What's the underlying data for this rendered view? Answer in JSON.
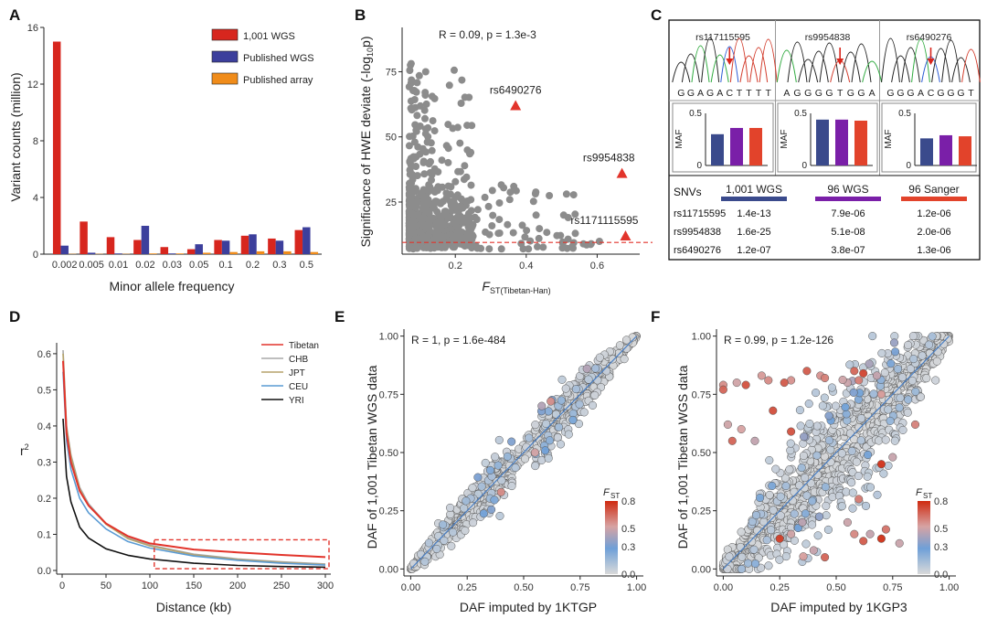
{
  "panels": {
    "A": {
      "letter": "A",
      "chart_data": {
        "type": "bar",
        "title": "",
        "xlabel": "Minor allele frequency",
        "ylabel": "Variant  counts (million)",
        "ylim": [
          0,
          16
        ],
        "yticks": [
          "0",
          "4",
          "8",
          "12",
          "16"
        ],
        "categories": [
          "0.002",
          "0.005",
          "0.01",
          "0.02",
          "0.03",
          "0.05",
          "0.1",
          "0.2",
          "0.3",
          "0.5"
        ],
        "series": [
          {
            "name": "1,001 WGS",
            "color": "#d7261e",
            "values": [
              15.0,
              2.3,
              1.2,
              1.0,
              0.5,
              0.35,
              1.0,
              1.3,
              1.1,
              1.7
            ]
          },
          {
            "name": "Published WGS",
            "color": "#3c3f9c",
            "values": [
              0.6,
              0.1,
              0.05,
              2.0,
              0.05,
              0.7,
              0.95,
              1.4,
              0.95,
              1.9
            ]
          },
          {
            "name": "Published array",
            "color": "#f08c1a",
            "values": [
              0.02,
              0.02,
              0.02,
              0.05,
              0.05,
              0.1,
              0.15,
              0.2,
              0.2,
              0.15
            ]
          }
        ],
        "legend_position": "top-right"
      }
    },
    "B": {
      "letter": "B",
      "chart_data": {
        "type": "scatter",
        "annotation": "R = 0.09, p = 1.3e-3",
        "xlabel": "F",
        "xlabel_sub": "ST(Tibetan-Han)",
        "ylabel": "Significance of HWE deviate (-log",
        "ylabel_sub": "10",
        "ylabel_tail": "p)",
        "xlim": [
          0.05,
          0.72
        ],
        "ylim": [
          5,
          92
        ],
        "xticks": [
          "0.2",
          "0.4",
          "0.6"
        ],
        "yticks": [
          "25",
          "50",
          "75"
        ],
        "threshold_y": 9.5,
        "highlighted": [
          {
            "label": "rs6490276",
            "x": 0.37,
            "y": 62
          },
          {
            "label": "rs9954838",
            "x": 0.67,
            "y": 36
          },
          {
            "label": "rs1171115595",
            "x": 0.68,
            "y": 12
          }
        ],
        "point_color": "#8c8c8c",
        "highlight_color": "#e2342b"
      }
    },
    "C": {
      "letter": "C",
      "traces": [
        {
          "snp": "rs117115595",
          "sequence": "GGAGACTTTT",
          "highlight_index": 5
        },
        {
          "snp": "rs9954838",
          "sequence": "AGGGGTGGA",
          "highlight_index": 5
        },
        {
          "snp": "rs6490276",
          "sequence": "GGGACGGGT",
          "highlight_index": 4
        }
      ],
      "maf_label": "MAF",
      "maf_ticks": [
        "0",
        "0.5"
      ],
      "chart_data": {
        "type": "bar",
        "ylabel": "MAF",
        "ylim": [
          0,
          0.5
        ],
        "categories": [
          "rs117115595",
          "rs9954838",
          "rs6490276"
        ],
        "series": [
          {
            "name": "1,001 WGS",
            "color": "#3a4a8c",
            "values": [
              0.3,
              0.44,
              0.26
            ]
          },
          {
            "name": "96 WGS",
            "color": "#7a1fa8",
            "values": [
              0.36,
              0.44,
              0.29
            ]
          },
          {
            "name": "96 Sanger",
            "color": "#e2432b",
            "values": [
              0.36,
              0.43,
              0.28
            ]
          }
        ]
      },
      "table": {
        "header": [
          "SNVs",
          "1,001 WGS",
          "96 WGS",
          "96 Sanger"
        ],
        "rows": [
          [
            "rs11715595",
            "1.4e-13",
            "7.9e-06",
            "1.2e-06"
          ],
          [
            "rs9954838",
            "1.6e-25",
            "5.1e-08",
            "2.0e-06"
          ],
          [
            "rs6490276",
            "1.2e-07",
            "3.8e-07",
            "1.3e-06"
          ]
        ]
      }
    },
    "D": {
      "letter": "D",
      "chart_data": {
        "type": "line",
        "xlabel": "Distance (kb)",
        "ylabel": "r",
        "ylabel_sup": "2",
        "xlim": [
          0,
          300
        ],
        "ylim": [
          0,
          0.62
        ],
        "xticks": [
          "0",
          "50",
          "100",
          "150",
          "200",
          "250",
          "300"
        ],
        "yticks": [
          "0.0",
          "0.1",
          "0.2",
          "0.3",
          "0.4",
          "0.5",
          "0.6"
        ],
        "series": [
          {
            "name": "Tibetan",
            "color": "#e2342b",
            "x": [
              1,
              5,
              10,
              20,
              30,
              50,
              75,
              100,
              150,
              200,
              250,
              300
            ],
            "y": [
              0.58,
              0.38,
              0.3,
              0.22,
              0.18,
              0.13,
              0.095,
              0.075,
              0.058,
              0.05,
              0.043,
              0.037
            ]
          },
          {
            "name": "CHB",
            "color": "#a8a8a8",
            "x": [
              1,
              5,
              10,
              20,
              30,
              50,
              75,
              100,
              150,
              200,
              250,
              300
            ],
            "y": [
              0.61,
              0.4,
              0.32,
              0.23,
              0.185,
              0.13,
              0.09,
              0.07,
              0.045,
              0.032,
              0.024,
              0.018
            ]
          },
          {
            "name": "JPT",
            "color": "#b5a26a",
            "x": [
              1,
              5,
              10,
              20,
              30,
              50,
              75,
              100,
              150,
              200,
              250,
              300
            ],
            "y": [
              0.6,
              0.395,
              0.315,
              0.225,
              0.18,
              0.128,
              0.088,
              0.068,
              0.043,
              0.03,
              0.022,
              0.016
            ]
          },
          {
            "name": "CEU",
            "color": "#5a9bd4",
            "x": [
              1,
              5,
              10,
              20,
              30,
              50,
              75,
              100,
              150,
              200,
              250,
              300
            ],
            "y": [
              0.55,
              0.36,
              0.28,
              0.2,
              0.16,
              0.115,
              0.08,
              0.062,
              0.04,
              0.028,
              0.02,
              0.015
            ]
          },
          {
            "name": "YRI",
            "color": "#111111",
            "x": [
              1,
              5,
              10,
              20,
              30,
              50,
              75,
              100,
              150,
              200,
              250,
              300
            ],
            "y": [
              0.42,
              0.26,
              0.19,
              0.12,
              0.09,
              0.06,
              0.042,
              0.032,
              0.02,
              0.014,
              0.011,
              0.009
            ]
          }
        ],
        "legend_position": "top-right",
        "highlight_box": {
          "x_from": 105,
          "x_to": 300,
          "y_from": 0.005,
          "y_to": 0.085
        }
      }
    },
    "E": {
      "letter": "E",
      "chart_data": {
        "type": "scatter",
        "annotation": "R = 1, p = 1.6e-484",
        "xlabel": "DAF imputed by 1KTGP",
        "ylabel": "DAF of 1,001 Tibetan WGS data",
        "xlim": [
          -0.03,
          1.03
        ],
        "ylim": [
          -0.03,
          1.03
        ],
        "xticks": [
          "0.00",
          "0.25",
          "0.50",
          "0.75",
          "1.00"
        ],
        "yticks": [
          "0.00",
          "0.25",
          "0.50",
          "0.75",
          "1.00"
        ],
        "colorbar": {
          "title": "F",
          "title_sub": "ST",
          "ticks": [
            "0.8",
            "0.5",
            "0.3",
            "0.0"
          ]
        }
      }
    },
    "F": {
      "letter": "F",
      "chart_data": {
        "type": "scatter",
        "annotation": "R = 0.99, p = 1.2e-126",
        "xlabel": "DAF imputed by 1KGP3",
        "ylabel": "DAF of 1,001 Tibetan WGS data",
        "xlim": [
          -0.03,
          1.03
        ],
        "ylim": [
          -0.03,
          1.03
        ],
        "xticks": [
          "0.00",
          "0.25",
          "0.50",
          "0.75",
          "1.00"
        ],
        "yticks": [
          "0.00",
          "0.25",
          "0.50",
          "0.75",
          "1.00"
        ],
        "colorbar": {
          "title": "F",
          "title_sub": "ST",
          "ticks": [
            "0.8",
            "0.5",
            "0.3",
            "0.0"
          ]
        }
      }
    }
  }
}
